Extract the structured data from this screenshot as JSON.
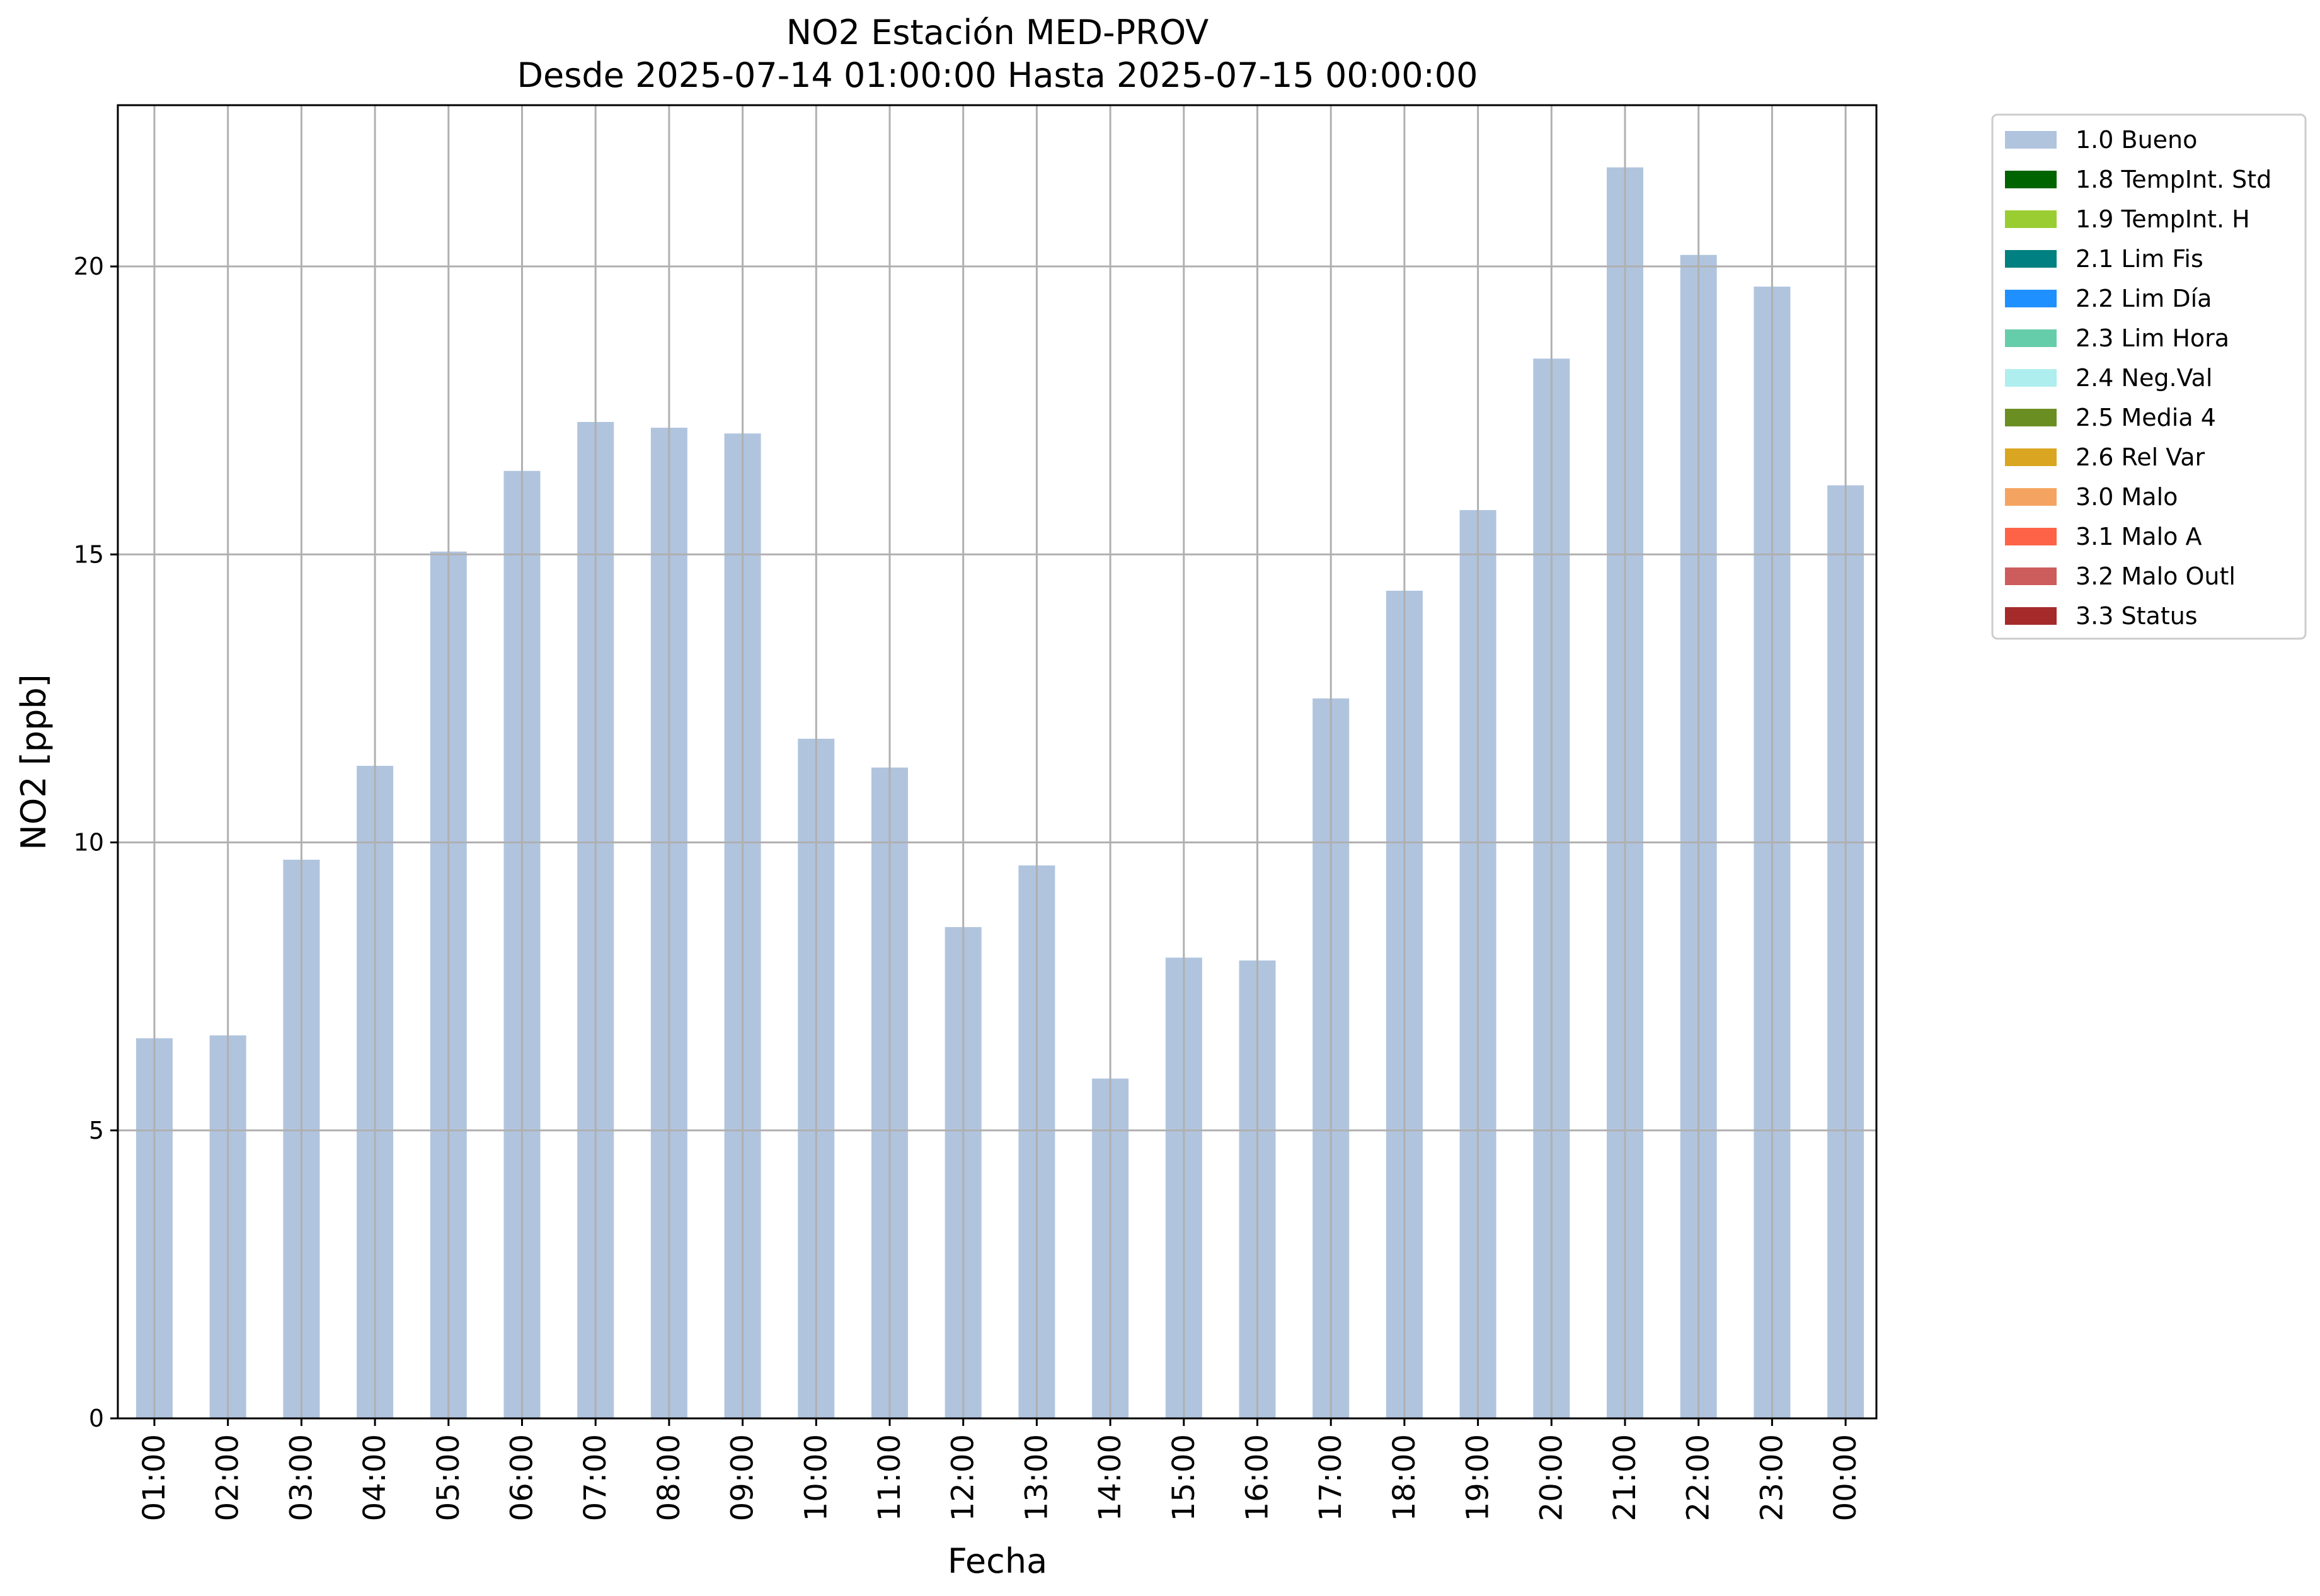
{
  "chart_data": {
    "type": "bar",
    "title": "NO2 Estación MED-PROV",
    "subtitle": "Desde 2025-07-14 01:00:00 Hasta 2025-07-15 00:00:00",
    "xlabel": "Fecha",
    "ylabel": "NO2 [ppb]",
    "ylim": [
      0,
      22.8
    ],
    "yticks": [
      0,
      5,
      10,
      15,
      20
    ],
    "grid": true,
    "categories": [
      "01:00",
      "02:00",
      "03:00",
      "04:00",
      "05:00",
      "06:00",
      "07:00",
      "08:00",
      "09:00",
      "10:00",
      "11:00",
      "12:00",
      "13:00",
      "14:00",
      "15:00",
      "16:00",
      "17:00",
      "18:00",
      "19:00",
      "20:00",
      "21:00",
      "22:00",
      "23:00",
      "00:00"
    ],
    "series": [
      {
        "name": "1.0 Bueno",
        "color": "#b0c4de",
        "values": [
          6.6,
          6.65,
          9.7,
          11.33,
          15.05,
          16.45,
          17.3,
          17.2,
          17.1,
          11.8,
          11.3,
          8.53,
          9.6,
          5.9,
          8.0,
          7.95,
          12.5,
          14.37,
          15.77,
          18.4,
          21.72,
          20.2,
          19.65,
          16.2
        ]
      }
    ],
    "legend_position": "outside-right",
    "legend": [
      {
        "label": "1.0 Bueno",
        "color": "#b0c4de"
      },
      {
        "label": "1.8 TempInt. Std",
        "color": "#006400"
      },
      {
        "label": "1.9 TempInt. H",
        "color": "#9acd32"
      },
      {
        "label": "2.1 Lim Fis",
        "color": "#008080"
      },
      {
        "label": "2.2 Lim Día",
        "color": "#1e90ff"
      },
      {
        "label": "2.3 Lim Hora",
        "color": "#66cdaa"
      },
      {
        "label": "2.4 Neg.Val",
        "color": "#afeeee"
      },
      {
        "label": "2.5 Media 4",
        "color": "#6b8e23"
      },
      {
        "label": "2.6 Rel Var",
        "color": "#daa520"
      },
      {
        "label": "3.0 Malo",
        "color": "#f4a460"
      },
      {
        "label": "3.1 Malo A",
        "color": "#ff6347"
      },
      {
        "label": "3.2 Malo Outl",
        "color": "#cd5c5c"
      },
      {
        "label": "3.3 Status",
        "color": "#a52a2a"
      }
    ]
  }
}
